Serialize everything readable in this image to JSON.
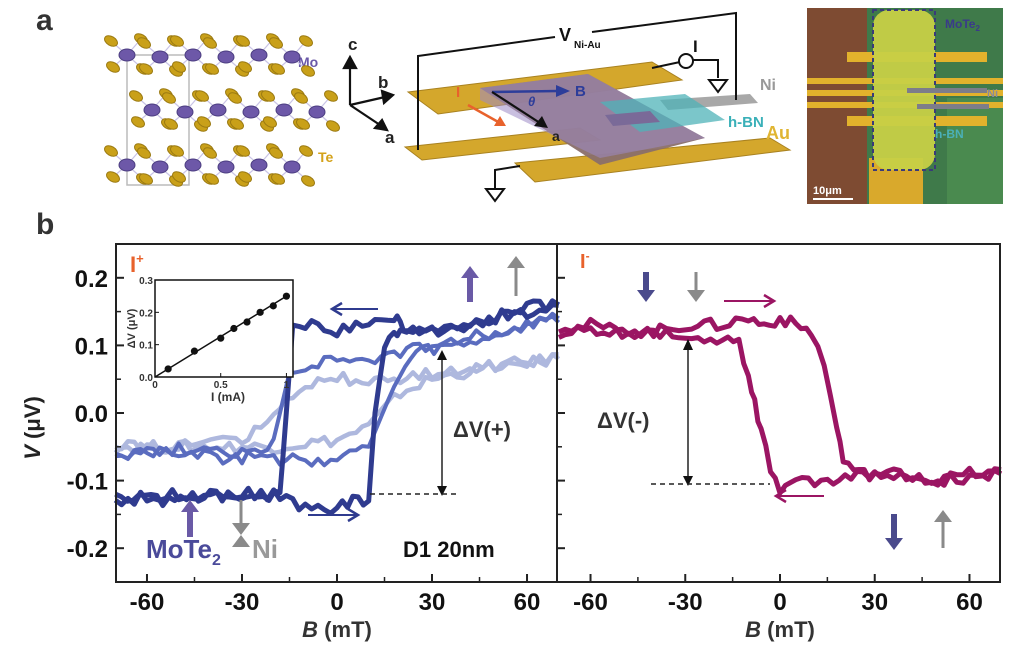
{
  "panel_a": {
    "letter": "a",
    "crystal": {
      "mo_label": "Mo",
      "te_label": "Te"
    },
    "device": {
      "voltage_label": "V",
      "voltage_sub": "Ni-Au",
      "current_label": "I",
      "axis_c": "c",
      "axis_b": "b",
      "axis_a": "a",
      "field_label": "B",
      "angle_label": "θ",
      "current_dir_label": "I",
      "a_axis_on_flake": "a",
      "ni_label": "Ni",
      "hbn_label": "h-BN",
      "au_label": "Au"
    },
    "micrograph": {
      "mote2_label": "MoTe",
      "mote2_sub": "2",
      "ni_label": "Ni",
      "hbn_label": "h-BN",
      "scale_bar": "10μm"
    }
  },
  "panel_b": {
    "letter": "b",
    "colors": {
      "dark": "#2f3b8f",
      "mid": "#5a6cbf",
      "light": "#aeb8de",
      "magenta": "#9b1563",
      "orange": "#e8622c",
      "purple": "#6a5aa6",
      "grey": "#8a8a8a"
    }
  },
  "chart_data": [
    {
      "type": "line",
      "title": "I+",
      "xlabel": "B (mT)",
      "ylabel": "V (μV)",
      "xlim": [
        -70,
        70
      ],
      "ylim": [
        -0.25,
        0.25
      ],
      "xticks": [
        -60,
        -30,
        0,
        30,
        60
      ],
      "yticks": [
        -0.2,
        -0.1,
        0.0,
        0.1,
        0.2
      ],
      "ytick_labels": [
        "-0.2",
        "-0.1",
        "0.0",
        "0.1",
        "0.2"
      ],
      "annotations": [
        "ΔV(+)",
        "D1 20nm",
        "MoTe2",
        "Ni"
      ],
      "series": [
        {
          "name": "dark",
          "sweep_down": {
            "x": [
              70,
              60,
              50,
              40,
              30,
              22,
              20,
              18,
              10,
              0,
              -10,
              -14,
              -16,
              -18,
              -25,
              -40,
              -55,
              -70
            ],
            "y": [
              0.16,
              0.15,
              0.14,
              0.13,
              0.12,
              0.13,
              0.13,
              0.14,
              0.13,
              0.12,
              0.13,
              0.13,
              0.0,
              -0.12,
              -0.13,
              -0.12,
              -0.13,
              -0.12
            ]
          },
          "sweep_up": {
            "x": [
              -70,
              -50,
              -30,
              -20,
              -10,
              0,
              5,
              10,
              12,
              15,
              18,
              20,
              30,
              40,
              50,
              60,
              70
            ],
            "y": [
              -0.13,
              -0.12,
              -0.12,
              -0.12,
              -0.14,
              -0.14,
              -0.13,
              -0.13,
              0.0,
              0.1,
              0.12,
              0.12,
              0.12,
              0.13,
              0.14,
              0.16,
              0.16
            ]
          }
        },
        {
          "name": "mid",
          "sweep_down": {
            "x": [
              70,
              50,
              30,
              20,
              10,
              0,
              -10,
              -15,
              -20,
              -30,
              -50,
              -70
            ],
            "y": [
              0.14,
              0.12,
              0.1,
              0.09,
              0.08,
              0.08,
              0.07,
              0.06,
              -0.04,
              -0.07,
              -0.06,
              -0.06
            ]
          },
          "sweep_up": {
            "x": [
              -70,
              -40,
              -20,
              0,
              10,
              18,
              25,
              40,
              60,
              70
            ],
            "y": [
              -0.06,
              -0.05,
              -0.07,
              -0.07,
              -0.05,
              0.04,
              0.09,
              0.1,
              0.13,
              0.14
            ]
          }
        },
        {
          "name": "light",
          "sweep_down": {
            "x": [
              70,
              50,
              30,
              20,
              0,
              -10,
              -20,
              -30,
              -50,
              -70
            ],
            "y": [
              0.08,
              0.07,
              0.06,
              0.05,
              0.05,
              0.04,
              0.0,
              -0.04,
              -0.05,
              -0.05
            ]
          },
          "sweep_up": {
            "x": [
              -70,
              -40,
              -20,
              0,
              10,
              20,
              30,
              50,
              70
            ],
            "y": [
              -0.05,
              -0.05,
              -0.05,
              -0.04,
              -0.02,
              0.03,
              0.05,
              0.07,
              0.08
            ]
          }
        }
      ],
      "inset": {
        "type": "scatter",
        "xlabel": "I (mA)",
        "ylabel": "ΔV (μV)",
        "xlim": [
          0,
          1.05
        ],
        "ylim": [
          0,
          0.3
        ],
        "xticks": [
          0,
          0.5,
          1
        ],
        "xtick_labels": [
          "0",
          "0.5",
          "1"
        ],
        "yticks": [
          0.0,
          0.1,
          0.2,
          0.3
        ],
        "ytick_labels": [
          "0.0",
          "0.1",
          "0.2",
          "0.3"
        ],
        "x": [
          0.1,
          0.3,
          0.5,
          0.6,
          0.7,
          0.8,
          0.9,
          1.0
        ],
        "y": [
          0.025,
          0.08,
          0.12,
          0.15,
          0.17,
          0.2,
          0.22,
          0.25
        ],
        "fit": {
          "x": [
            0,
            1.0
          ],
          "y": [
            0,
            0.25
          ]
        }
      }
    },
    {
      "type": "line",
      "title": "I-",
      "xlabel": "B (mT)",
      "xlim": [
        -70,
        70
      ],
      "ylim": [
        -0.25,
        0.25
      ],
      "xticks": [
        -60,
        -30,
        0,
        30,
        60
      ],
      "annotations": [
        "ΔV(-)"
      ],
      "series": [
        {
          "name": "magenta",
          "sweep_up": {
            "x": [
              -70,
              -60,
              -50,
              -40,
              -30,
              -20,
              -10,
              -5,
              0,
              5,
              10,
              14,
              18,
              20,
              25,
              30,
              40,
              50,
              60,
              70
            ],
            "y": [
              0.12,
              0.13,
              0.12,
              0.12,
              0.13,
              0.13,
              0.14,
              0.13,
              0.14,
              0.13,
              0.12,
              0.07,
              -0.02,
              -0.07,
              -0.09,
              -0.09,
              -0.09,
              -0.1,
              -0.09,
              -0.09
            ]
          },
          "sweep_down": {
            "x": [
              70,
              50,
              30,
              15,
              5,
              0,
              -3,
              -6,
              -8,
              -10,
              -13,
              -20,
              -30,
              -40,
              -60,
              -70
            ],
            "y": [
              -0.09,
              -0.1,
              -0.09,
              -0.1,
              -0.1,
              -0.11,
              -0.08,
              -0.03,
              0.02,
              0.05,
              0.1,
              0.11,
              0.11,
              0.12,
              0.12,
              0.12
            ]
          }
        }
      ]
    }
  ],
  "axis_text": {
    "x_label_b": "B",
    "x_label_unit": " (mT)",
    "y_label_v": "V",
    "y_label_unit": " (μV)",
    "left_title": "I",
    "left_title_sup": "+",
    "right_title": "I",
    "right_title_sup": "-",
    "dv_plus": "ΔV(+)",
    "dv_minus": "ΔV(-)",
    "sample": "D1 20nm",
    "mote2": "MoTe",
    "mote2_sub": "2",
    "ni": "Ni"
  }
}
